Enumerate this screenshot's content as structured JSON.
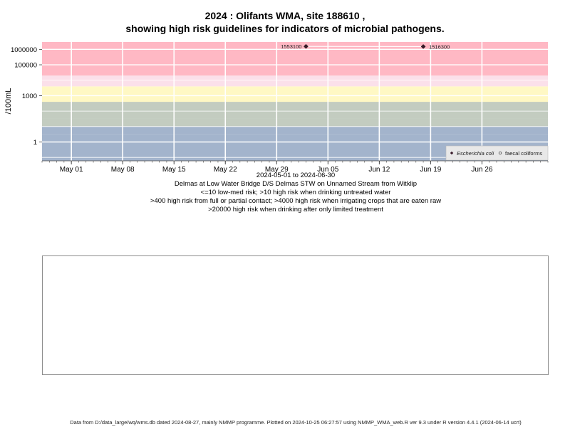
{
  "title_line1": "2024 : Olifants WMA, site 188610 ,",
  "title_line2": "showing high risk guidelines for indicators of microbial pathogens.",
  "subtitle": [
    "2024-05-01 to 2024-06-30",
    "Delmas at Low Water Bridge D/S Delmas STW on Unnamed Stream from Witklip",
    "<=10 low-med risk; >10 high risk when drinking untreated water",
    ">400 high risk from full or partial contact; >4000 high risk when irrigating crops that are eaten raw",
    ">20000 high risk when drinking after only limited treatment"
  ],
  "footer": "Data from D:/data_large/wq/wms.db dated 2024-08-27, mainly NMMP programme. Plotted on 2024-10-25 06:27:57 using NMMP_WMA_web.R ver 9.3 under R version 4.4.1 (2024-06-14 ucrt)",
  "chart_data": {
    "type": "scatter",
    "ylabel": "/100mL",
    "y_scale": "log",
    "ylim": [
      0.06,
      3000000
    ],
    "xlim": [
      "2024-04-27",
      "2024-07-05"
    ],
    "x_ticks": [
      {
        "date": "2024-05-01",
        "label": "May 01"
      },
      {
        "date": "2024-05-08",
        "label": "May 08"
      },
      {
        "date": "2024-05-15",
        "label": "May 15"
      },
      {
        "date": "2024-05-22",
        "label": "May 22"
      },
      {
        "date": "2024-05-29",
        "label": "May 29"
      },
      {
        "date": "2024-06-05",
        "label": "Jun 05"
      },
      {
        "date": "2024-06-12",
        "label": "Jun 12"
      },
      {
        "date": "2024-06-19",
        "label": "Jun 19"
      },
      {
        "date": "2024-06-26",
        "label": "Jun 26"
      }
    ],
    "y_ticks": [
      {
        "value": 1,
        "label": "1"
      },
      {
        "value": 1000,
        "label": "1000"
      },
      {
        "value": 100000,
        "label": "100000"
      },
      {
        "value": 1000000,
        "label": "1000000"
      }
    ],
    "bands": [
      {
        "from": 0.06,
        "to": 3.16,
        "color": "#a3b4cc"
      },
      {
        "from": 3.16,
        "to": 10,
        "color": "#a3b4cc"
      },
      {
        "from": 10,
        "to": 31.6,
        "color": "#c3ccc0"
      },
      {
        "from": 31.6,
        "to": 400,
        "color": "#c3ccc0"
      },
      {
        "from": 400,
        "to": 4000,
        "color": "#fff8c4"
      },
      {
        "from": 4000,
        "to": 20000,
        "color": "#fbe0ea"
      },
      {
        "from": 20000,
        "to": 3000000,
        "color": "#ffb8c4"
      }
    ],
    "grid": true,
    "legend_position": "bottom-right",
    "legend": [
      {
        "label": "Escherichia coli",
        "marker": "diamond-filled",
        "italic": true
      },
      {
        "label": "faecal coliforms",
        "marker": "circle-open",
        "italic": false
      }
    ],
    "series": [
      {
        "name": "Escherichia coli",
        "points": [
          {
            "x": "2024-06-02",
            "y": 1553100,
            "label": "1553100"
          },
          {
            "x": "2024-06-18",
            "y": 1516300,
            "label": "1516300"
          }
        ]
      }
    ]
  }
}
